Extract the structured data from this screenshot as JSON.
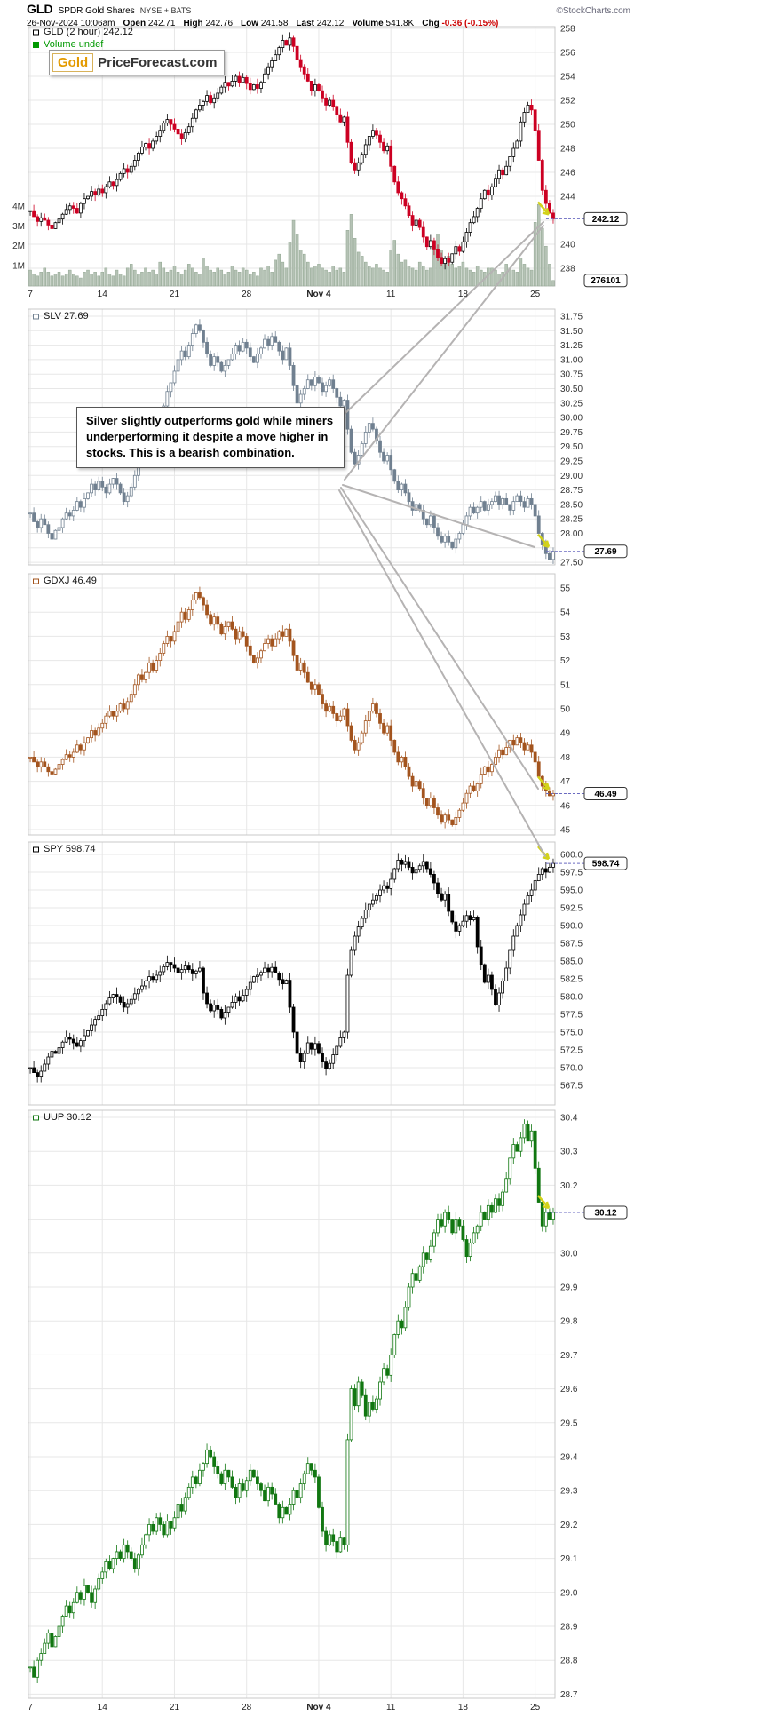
{
  "header": {
    "symbol": "GLD",
    "name": "SPDR Gold Shares",
    "exchange": "NYSE + BATS",
    "copyright": "©StockCharts.com",
    "datetime": "26-Nov-2024 10:06am",
    "stats": [
      {
        "label": "Open",
        "value": "242.71"
      },
      {
        "label": "High",
        "value": "242.76"
      },
      {
        "label": "Low",
        "value": "241.58"
      },
      {
        "label": "Last",
        "value": "242.12"
      },
      {
        "label": "Volume",
        "value": "541.8K"
      },
      {
        "label": "Chg",
        "value": "-0.36 (-0.15%)",
        "color": "#cc0000"
      }
    ]
  },
  "logo": {
    "gold": "Gold",
    "rest": "PriceForecast.com"
  },
  "annotation": {
    "text": "Silver slightly outperforms gold while miners underperforming it despite a move higher in stocks. This is a bearish combination."
  },
  "xticks": [
    "7",
    "14",
    "21",
    "28",
    "Nov 4",
    "11",
    "18",
    "25"
  ],
  "colors": {
    "grid": "#e7e7e7",
    "panel_border": "#c9c9c9",
    "callout_line": "#b5b3b3",
    "leader_dash": "#6a6ac0",
    "highlight": "#d2d21a",
    "negative": "#cc0000"
  },
  "chart_data": [
    {
      "type": "candlestick",
      "symbol": "GLD",
      "legend": "GLD (2 hour) 242.12",
      "volume_legend": "Volume undef",
      "last": "242.12",
      "volume_tag": "276101",
      "color_up": "#000000",
      "color_down": "#cc0022",
      "volume_color": "#b5c2b5",
      "volume_border": "#90a690",
      "volume_legend_color": "#009900",
      "ylim": [
        238,
        258
      ],
      "yticks": [
        "258",
        "256",
        "254",
        "252",
        "250",
        "248",
        "246",
        "244",
        "242",
        "240",
        "238"
      ],
      "volume_yticks": [
        "4M",
        "3M",
        "2M",
        "1M"
      ],
      "closes": [
        242.8,
        242.3,
        241.9,
        242.2,
        242.0,
        241.6,
        241.3,
        241.8,
        242.1,
        242.5,
        242.9,
        243.2,
        243.0,
        242.6,
        243.4,
        243.8,
        244.0,
        244.4,
        244.1,
        244.6,
        244.3,
        244.8,
        245.2,
        244.9,
        245.4,
        245.9,
        246.3,
        246.0,
        246.5,
        247.0,
        247.6,
        248.1,
        248.4,
        248.0,
        248.6,
        249.0,
        249.5,
        250.1,
        250.4,
        250.0,
        249.6,
        249.2,
        248.8,
        249.3,
        249.8,
        250.5,
        251.2,
        251.6,
        251.9,
        252.4,
        251.8,
        252.2,
        252.6,
        253.1,
        253.5,
        253.2,
        253.6,
        254.0,
        253.5,
        253.9,
        253.4,
        252.9,
        253.3,
        253.0,
        253.5,
        254.2,
        254.8,
        255.3,
        255.8,
        256.4,
        257.0,
        256.6,
        257.2,
        256.5,
        255.4,
        254.8,
        254.2,
        253.6,
        252.8,
        253.3,
        252.8,
        252.2,
        251.6,
        252.0,
        251.5,
        250.8,
        250.2,
        250.6,
        248.5,
        246.8,
        246.2,
        246.8,
        247.5,
        248.3,
        249.0,
        249.5,
        249.1,
        248.5,
        247.8,
        248.2,
        246.5,
        245.2,
        244.3,
        243.8,
        243.2,
        242.4,
        241.6,
        242.0,
        241.4,
        240.6,
        239.8,
        240.3,
        239.6,
        238.9,
        238.4,
        238.8,
        238.5,
        239.2,
        239.8,
        239.4,
        240.2,
        241.0,
        241.8,
        242.3,
        243.0,
        243.8,
        244.5,
        244.1,
        244.8,
        245.5,
        246.2,
        245.8,
        246.5,
        247.3,
        248.0,
        248.6,
        250.2,
        251.0,
        251.6,
        251.2,
        249.5,
        247.0,
        244.5,
        243.4,
        242.6,
        242.12
      ],
      "volumes": [
        0.8,
        0.6,
        0.5,
        0.7,
        0.9,
        0.7,
        0.5,
        0.6,
        0.7,
        0.5,
        0.6,
        0.8,
        0.6,
        0.5,
        0.4,
        0.7,
        0.8,
        0.6,
        0.7,
        0.5,
        0.7,
        0.9,
        0.6,
        0.5,
        0.8,
        0.6,
        0.5,
        0.9,
        1.1,
        0.8,
        0.6,
        0.7,
        0.9,
        0.7,
        0.8,
        0.6,
        1.2,
        0.9,
        0.7,
        0.8,
        1.0,
        0.7,
        0.6,
        0.8,
        1.1,
        0.9,
        0.7,
        0.6,
        1.4,
        1.0,
        0.8,
        0.7,
        0.9,
        0.8,
        0.6,
        0.7,
        1.0,
        0.8,
        0.7,
        0.9,
        0.8,
        0.6,
        0.7,
        0.5,
        0.9,
        0.8,
        1.0,
        0.7,
        1.3,
        1.6,
        1.2,
        0.9,
        2.2,
        3.3,
        2.6,
        1.8,
        1.6,
        1.2,
        0.9,
        1.0,
        1.1,
        0.9,
        0.8,
        0.7,
        1.0,
        0.8,
        0.9,
        0.7,
        2.8,
        3.6,
        2.4,
        1.7,
        1.5,
        1.2,
        1.0,
        0.9,
        1.1,
        0.9,
        0.8,
        0.7,
        1.8,
        2.3,
        1.6,
        1.2,
        1.3,
        1.0,
        0.9,
        0.8,
        1.2,
        1.0,
        0.8,
        0.9,
        2.0,
        2.6,
        1.8,
        1.3,
        1.5,
        1.1,
        0.9,
        1.0,
        1.2,
        0.9,
        0.8,
        0.7,
        1.0,
        0.8,
        0.7,
        0.9,
        0.9,
        0.8,
        0.6,
        0.7,
        1.1,
        0.9,
        0.8,
        0.7,
        1.4,
        1.1,
        0.9,
        0.8,
        3.2,
        4.1,
        2.9,
        2.0,
        1.1,
        0.28
      ]
    },
    {
      "type": "candlestick",
      "symbol": "SLV",
      "legend": "SLV 27.69",
      "last": "27.69",
      "color_up": "#708090",
      "color_down": "#708090",
      "ylim": [
        27.5,
        31.75
      ],
      "yticks": [
        "31.75",
        "31.50",
        "31.25",
        "31.00",
        "30.75",
        "30.50",
        "30.25",
        "30.00",
        "29.75",
        "29.50",
        "29.25",
        "29.00",
        "28.75",
        "28.50",
        "28.25",
        "28.00",
        "27.75",
        "27.50"
      ],
      "closes": [
        28.35,
        28.2,
        28.1,
        28.25,
        28.15,
        28.0,
        27.9,
        28.05,
        28.1,
        28.25,
        28.35,
        28.3,
        28.4,
        28.55,
        28.45,
        28.6,
        28.7,
        28.85,
        28.75,
        28.9,
        28.8,
        28.7,
        28.85,
        28.95,
        28.85,
        28.7,
        28.55,
        28.65,
        28.8,
        29.0,
        29.2,
        29.35,
        29.5,
        29.7,
        29.6,
        29.75,
        29.95,
        30.2,
        30.45,
        30.6,
        30.8,
        31.0,
        31.15,
        31.05,
        31.25,
        31.45,
        31.6,
        31.5,
        31.3,
        31.1,
        30.9,
        31.05,
        30.95,
        30.8,
        30.9,
        31.0,
        31.1,
        31.25,
        31.15,
        31.3,
        31.2,
        31.05,
        30.95,
        31.1,
        31.2,
        31.35,
        31.25,
        31.4,
        31.3,
        31.15,
        31.0,
        31.2,
        30.9,
        30.55,
        30.25,
        30.4,
        30.5,
        30.65,
        30.55,
        30.7,
        30.6,
        30.45,
        30.55,
        30.65,
        30.5,
        30.35,
        30.2,
        30.3,
        29.8,
        29.4,
        29.2,
        29.35,
        29.55,
        29.75,
        29.9,
        29.8,
        29.6,
        29.4,
        29.25,
        29.35,
        29.1,
        28.9,
        28.75,
        28.85,
        28.7,
        28.55,
        28.4,
        28.5,
        28.4,
        28.25,
        28.15,
        28.3,
        28.1,
        27.95,
        27.85,
        27.95,
        27.85,
        27.75,
        27.9,
        28.0,
        28.15,
        28.3,
        28.45,
        28.35,
        28.45,
        28.55,
        28.4,
        28.5,
        28.55,
        28.65,
        28.5,
        28.6,
        28.5,
        28.4,
        28.55,
        28.65,
        28.55,
        28.45,
        28.6,
        28.5,
        28.3,
        28.0,
        27.8,
        27.65,
        27.55,
        27.69
      ]
    },
    {
      "type": "candlestick",
      "symbol": "GDXJ",
      "legend": "GDXJ 46.49",
      "last": "46.49",
      "color_up": "#a3541e",
      "color_down": "#a3541e",
      "ylim": [
        45,
        55
      ],
      "yticks": [
        "55",
        "54",
        "53",
        "52",
        "51",
        "50",
        "49",
        "48",
        "47",
        "46",
        "45"
      ],
      "closes": [
        48.0,
        47.8,
        47.6,
        47.8,
        47.6,
        47.4,
        47.3,
        47.5,
        47.7,
        47.9,
        48.1,
        48.0,
        48.2,
        48.5,
        48.3,
        48.6,
        48.8,
        49.1,
        48.9,
        49.2,
        49.4,
        49.7,
        49.9,
        49.7,
        49.9,
        50.2,
        50.0,
        50.3,
        50.6,
        51.0,
        51.4,
        51.2,
        51.5,
        51.9,
        51.6,
        52.0,
        52.3,
        52.7,
        53.0,
        52.8,
        53.2,
        53.6,
        54.0,
        53.7,
        54.1,
        54.5,
        54.8,
        54.6,
        54.3,
        53.9,
        53.5,
        53.8,
        53.5,
        53.1,
        53.4,
        53.6,
        53.3,
        52.9,
        53.2,
        53.0,
        52.6,
        52.2,
        51.9,
        52.1,
        52.4,
        52.7,
        52.9,
        52.6,
        52.9,
        53.2,
        53.0,
        53.3,
        52.8,
        52.2,
        51.6,
        51.9,
        51.5,
        51.1,
        50.8,
        51.0,
        50.6,
        50.2,
        49.9,
        50.1,
        49.8,
        49.5,
        49.7,
        50.0,
        49.3,
        48.7,
        48.3,
        48.6,
        49.0,
        49.5,
        49.9,
        50.2,
        49.8,
        49.4,
        49.0,
        49.3,
        48.7,
        48.2,
        47.8,
        48.0,
        47.6,
        47.2,
        46.8,
        47.0,
        46.7,
        46.3,
        46.0,
        46.3,
        45.9,
        45.6,
        45.3,
        45.6,
        45.4,
        45.2,
        45.5,
        45.8,
        46.1,
        46.5,
        46.8,
        46.6,
        46.9,
        47.3,
        47.6,
        47.4,
        47.7,
        48.0,
        48.3,
        48.1,
        48.4,
        48.7,
        48.5,
        48.8,
        48.6,
        48.3,
        48.5,
        48.2,
        47.8,
        47.2,
        46.8,
        46.6,
        46.4,
        46.49
      ]
    },
    {
      "type": "candlestick",
      "symbol": "SPY",
      "legend": "SPY 598.74",
      "last": "598.74",
      "color_up": "#000000",
      "color_down": "#000000",
      "ylim": [
        567.5,
        600.0
      ],
      "yticks": [
        "600.0",
        "597.5",
        "595.0",
        "592.5",
        "590.0",
        "587.5",
        "585.0",
        "582.5",
        "580.0",
        "577.5",
        "575.0",
        "572.5",
        "570.0",
        "567.5"
      ],
      "closes": [
        570.0,
        569.3,
        568.8,
        569.5,
        570.5,
        571.5,
        572.3,
        572.0,
        572.8,
        573.6,
        574.3,
        574.0,
        573.5,
        573.0,
        573.8,
        574.5,
        575.2,
        576.0,
        576.8,
        577.3,
        578.2,
        579.0,
        579.8,
        580.3,
        580.0,
        579.2,
        578.5,
        579.0,
        579.6,
        580.4,
        581.0,
        581.5,
        582.2,
        582.8,
        582.4,
        583.0,
        583.5,
        584.2,
        584.8,
        584.5,
        584.0,
        583.4,
        583.8,
        584.3,
        583.8,
        583.2,
        583.6,
        584.0,
        580.5,
        579.0,
        578.0,
        578.8,
        578.2,
        577.0,
        577.8,
        578.5,
        579.2,
        580.0,
        579.4,
        580.2,
        581.0,
        582.0,
        582.8,
        583.0,
        583.4,
        584.0,
        583.5,
        584.1,
        583.3,
        582.4,
        581.8,
        582.3,
        578.5,
        575.0,
        572.0,
        570.8,
        572.0,
        573.5,
        572.6,
        573.4,
        572.0,
        570.8,
        569.9,
        570.6,
        571.8,
        573.0,
        574.2,
        575.0,
        583.0,
        586.5,
        588.5,
        589.8,
        591.0,
        592.2,
        593.0,
        593.6,
        594.2,
        595.0,
        595.6,
        595.2,
        596.5,
        598.0,
        599.2,
        598.6,
        599.0,
        598.2,
        597.4,
        597.9,
        598.4,
        599.0,
        598.0,
        597.2,
        596.0,
        594.5,
        593.6,
        594.4,
        592.0,
        590.5,
        589.2,
        590.0,
        590.6,
        591.4,
        590.8,
        591.2,
        587.0,
        584.5,
        582.0,
        583.0,
        581.0,
        578.8,
        580.5,
        582.2,
        584.0,
        586.5,
        588.5,
        590.0,
        591.5,
        593.0,
        594.2,
        595.0,
        596.3,
        597.2,
        598.0,
        597.5,
        598.2,
        598.74
      ]
    },
    {
      "type": "candlestick",
      "symbol": "UUP",
      "legend": "UUP 30.12",
      "last": "30.12",
      "color_up": "#117711",
      "color_down": "#117711",
      "ylim": [
        28.7,
        30.4
      ],
      "yticks": [
        "30.4",
        "30.3",
        "30.2",
        "30.1",
        "30.0",
        "29.9",
        "29.8",
        "29.7",
        "29.6",
        "29.5",
        "29.4",
        "29.3",
        "29.2",
        "29.1",
        "29.0",
        "28.9",
        "28.8",
        "28.7"
      ],
      "closes": [
        28.78,
        28.75,
        28.8,
        28.82,
        28.85,
        28.88,
        28.84,
        28.87,
        28.9,
        28.93,
        28.96,
        28.94,
        28.97,
        29.0,
        28.98,
        29.02,
        29.0,
        28.97,
        29.01,
        29.04,
        29.06,
        29.09,
        29.07,
        29.1,
        29.12,
        29.1,
        29.14,
        29.12,
        29.1,
        29.07,
        29.11,
        29.14,
        29.17,
        29.2,
        29.18,
        29.22,
        29.2,
        29.17,
        29.21,
        29.19,
        29.22,
        29.26,
        29.24,
        29.28,
        29.31,
        29.34,
        29.32,
        29.36,
        29.38,
        29.42,
        29.4,
        29.37,
        29.35,
        29.32,
        29.36,
        29.34,
        29.31,
        29.28,
        29.32,
        29.3,
        29.33,
        29.36,
        29.34,
        29.32,
        29.3,
        29.27,
        29.31,
        29.29,
        29.26,
        29.22,
        29.25,
        29.23,
        29.26,
        29.3,
        29.28,
        29.32,
        29.35,
        29.38,
        29.36,
        29.34,
        29.25,
        29.18,
        29.14,
        29.17,
        29.15,
        29.12,
        29.16,
        29.14,
        29.45,
        29.6,
        29.55,
        29.62,
        29.58,
        29.52,
        29.56,
        29.54,
        29.57,
        29.62,
        29.66,
        29.64,
        29.7,
        29.76,
        29.8,
        29.78,
        29.84,
        29.9,
        29.94,
        29.92,
        29.96,
        30.0,
        29.98,
        30.02,
        30.06,
        30.1,
        30.08,
        30.12,
        30.1,
        30.06,
        30.1,
        30.08,
        30.04,
        29.99,
        30.03,
        30.06,
        30.08,
        30.12,
        30.1,
        30.14,
        30.12,
        30.16,
        30.14,
        30.18,
        30.22,
        30.28,
        30.32,
        30.3,
        30.34,
        30.38,
        30.33,
        30.36,
        30.25,
        30.15,
        30.08,
        30.12,
        30.1,
        30.12
      ]
    }
  ]
}
